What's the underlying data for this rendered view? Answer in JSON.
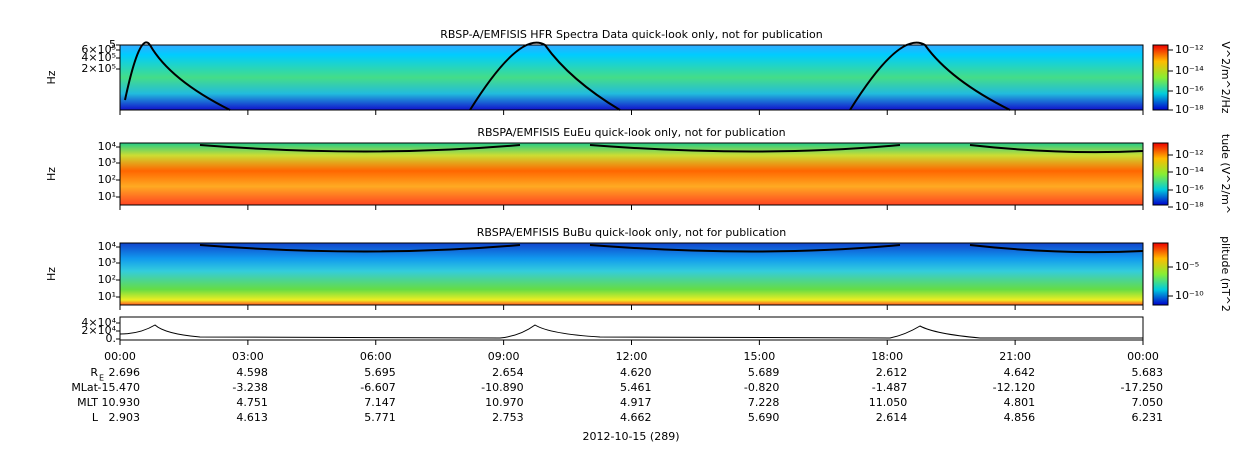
{
  "panels": [
    {
      "title": "RBSP-A/EMFISIS  HFR Spectra Data quick-look only, not for publication",
      "ylabel": "Hz",
      "yticks": [
        "5",
        "6×10⁵",
        "4×10⁵",
        "2×10⁵"
      ],
      "colorbar_label": "V^2/m^2/Hz",
      "colorbar_ticks": [
        "10⁻¹²",
        "10⁻¹⁴",
        "10⁻¹⁶",
        "10⁻¹⁸"
      ]
    },
    {
      "title": "RBSPA/EMFISIS  EuEu quick-look only, not for publication",
      "ylabel": "Hz",
      "yticks": [
        "10⁴",
        "10³",
        "10²",
        "10¹"
      ],
      "colorbar_label": "tude (V^2/m^",
      "colorbar_ticks": [
        "10⁻¹²",
        "10⁻¹⁴",
        "10⁻¹⁶",
        "10⁻¹⁸"
      ]
    },
    {
      "title": "RBSPA/EMFISIS  BuBu quick-look only, not for publication",
      "ylabel": "Hz",
      "yticks": [
        "10⁴",
        "10³",
        "10²",
        "10¹"
      ],
      "colorbar_label": "plitude (nT^2",
      "colorbar_ticks": [
        "10⁻⁵",
        "10⁻¹⁰"
      ]
    },
    {
      "yticks": [
        "4×10⁴",
        "2×10⁴",
        "0."
      ]
    }
  ],
  "xticks": [
    "00:00",
    "03:00",
    "06:00",
    "09:00",
    "12:00",
    "15:00",
    "18:00",
    "21:00",
    "00:00"
  ],
  "ephemeris": [
    {
      "label": "R",
      "sub": "E",
      "values": [
        "2.696",
        "4.598",
        "5.695",
        "2.654",
        "4.620",
        "5.689",
        "2.612",
        "4.642",
        "5.683"
      ]
    },
    {
      "label": "MLat",
      "values": [
        "-15.470",
        "-3.238",
        "-6.607",
        "-10.890",
        "5.461",
        "-0.820",
        "-1.487",
        "-12.120",
        "-17.250"
      ]
    },
    {
      "label": "MLT",
      "values": [
        "10.930",
        "4.751",
        "7.147",
        "10.970",
        "4.917",
        "7.228",
        "11.050",
        "4.801",
        "7.050"
      ]
    },
    {
      "label": "L",
      "values": [
        "2.903",
        "4.613",
        "5.771",
        "2.753",
        "4.662",
        "5.690",
        "2.614",
        "4.856",
        "6.231"
      ]
    }
  ],
  "date": "2012-10-15 (289)"
}
